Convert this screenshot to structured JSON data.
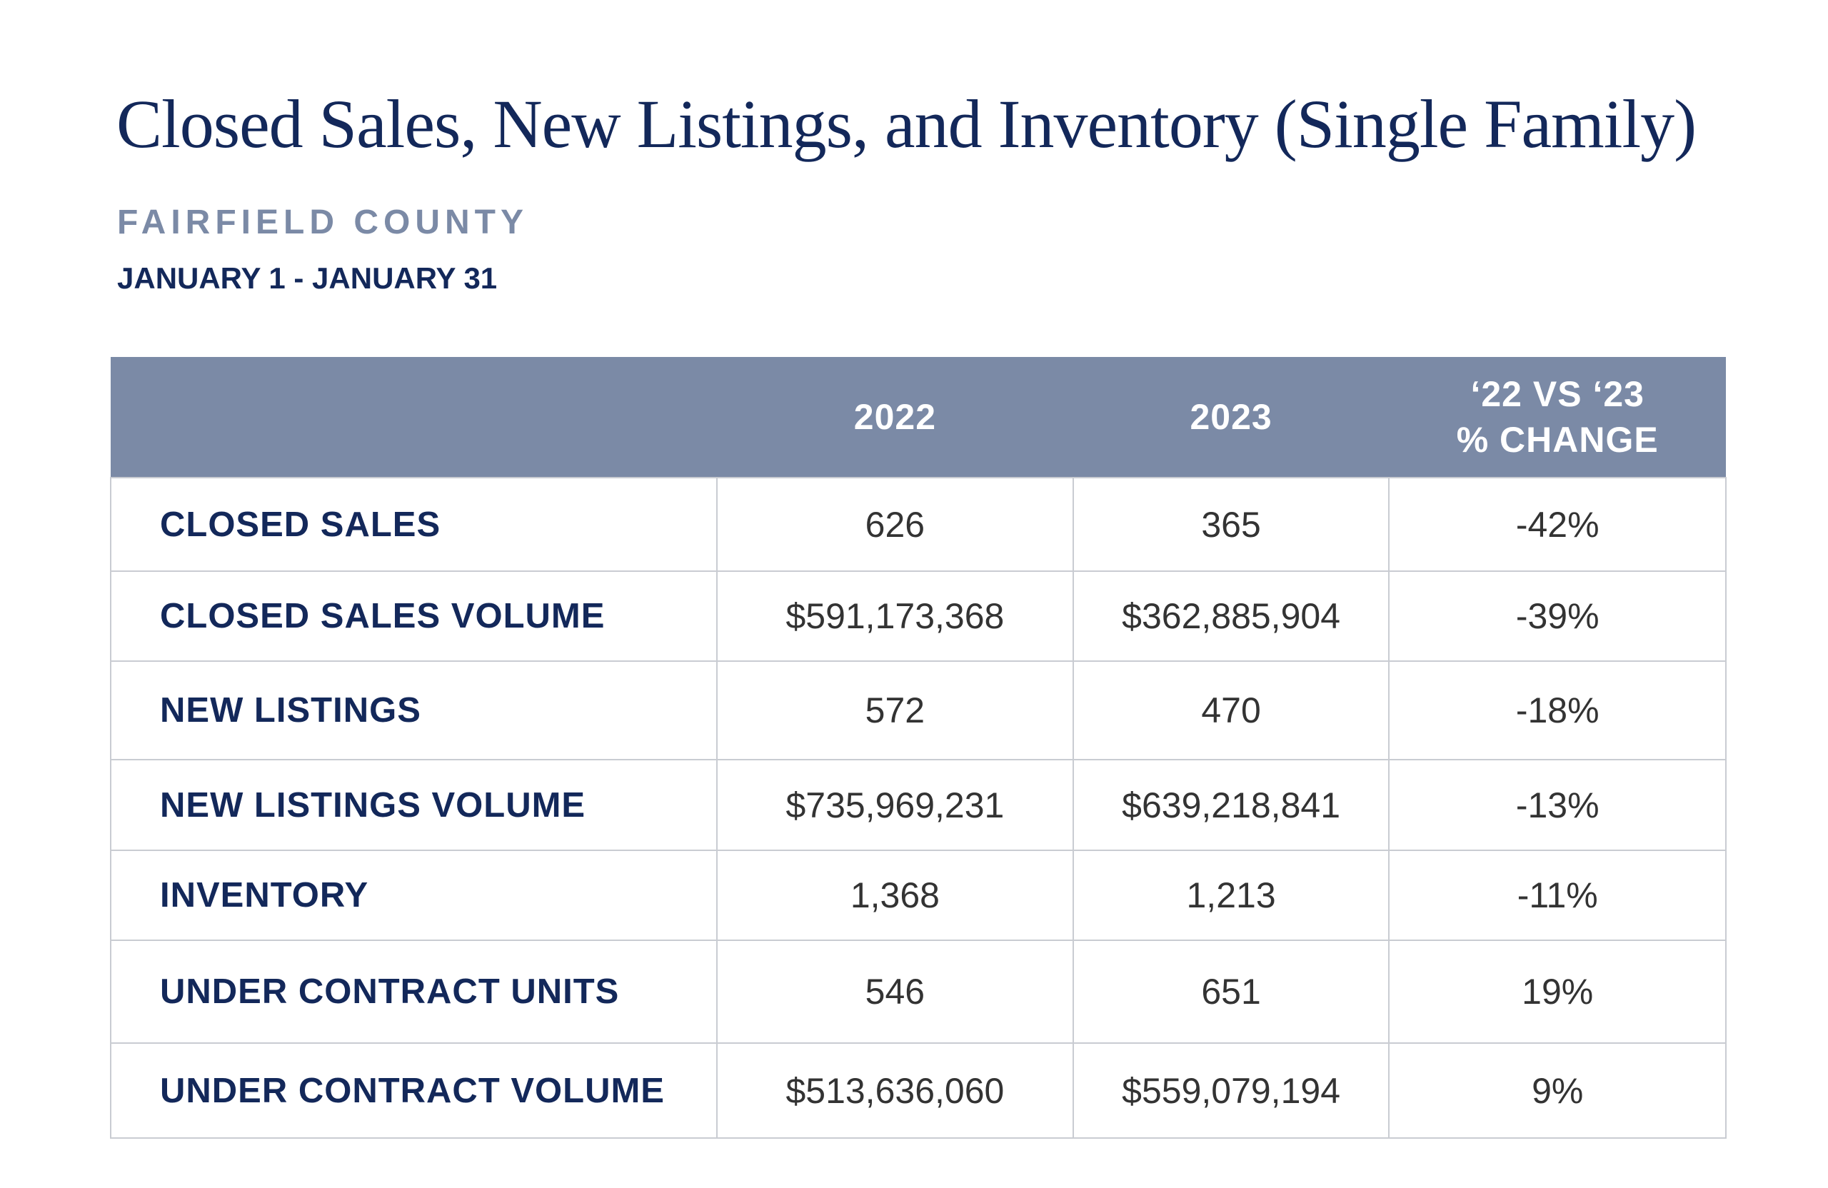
{
  "title": "Closed Sales, New Listings, and Inventory (Single Family)",
  "subtitle": "FAIRFIELD COUNTY",
  "date_range": "JANUARY 1 - JANUARY 31",
  "colors": {
    "navy": "#13285a",
    "header_bg": "#7b8aa6",
    "text": "#333333"
  },
  "table": {
    "headers": [
      "",
      "2022",
      "2023",
      "‘22 VS ‘23",
      "% CHANGE"
    ],
    "rows": [
      {
        "label": "CLOSED SALES",
        "y2022": "626",
        "y2023": "365",
        "change": "-42%"
      },
      {
        "label": "CLOSED SALES VOLUME",
        "y2022": "$591,173,368",
        "y2023": "$362,885,904",
        "change": "-39%"
      },
      {
        "label": "NEW LISTINGS",
        "y2022": "572",
        "y2023": "470",
        "change": "-18%"
      },
      {
        "label": "NEW LISTINGS VOLUME",
        "y2022": "$735,969,231",
        "y2023": "$639,218,841",
        "change": "-13%"
      },
      {
        "label": "INVENTORY",
        "y2022": "1,368",
        "y2023": "1,213",
        "change": "-11%"
      },
      {
        "label": "UNDER CONTRACT UNITS",
        "y2022": "546",
        "y2023": "651",
        "change": "19%"
      },
      {
        "label": "UNDER CONTRACT VOLUME",
        "y2022": "$513,636,060",
        "y2023": "$559,079,194",
        "change": "9%"
      }
    ]
  }
}
